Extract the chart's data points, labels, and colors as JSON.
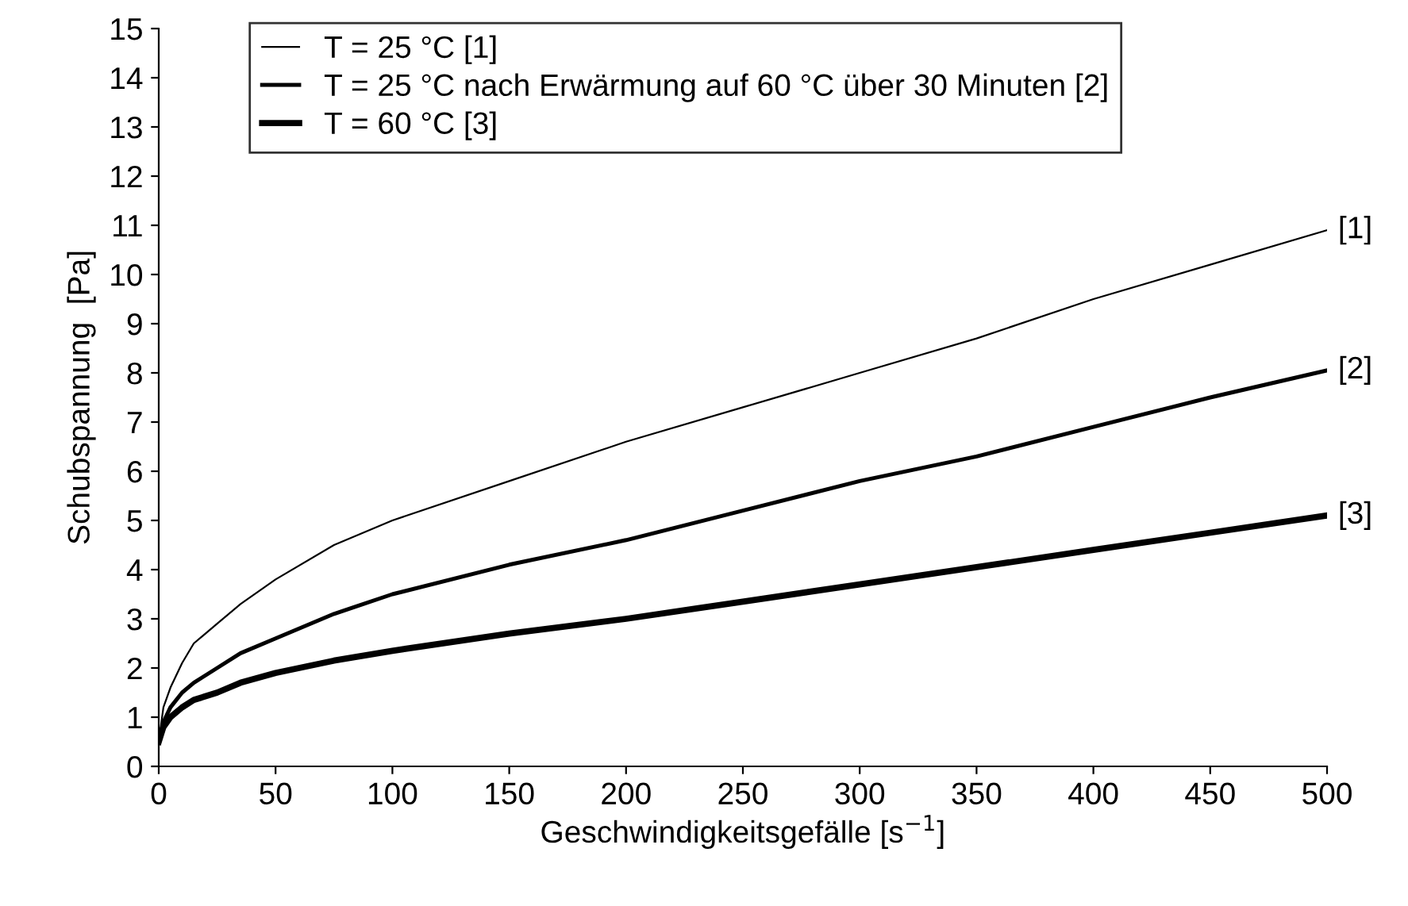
{
  "chart_data": {
    "type": "line",
    "xlabel": "Geschwindigkeitsgefälle [s$^{−1}$]",
    "ylabel": "Schubspannung  [Pa]",
    "xlim": [
      0,
      500
    ],
    "ylim": [
      0,
      15
    ],
    "xticks": [
      0,
      50,
      100,
      150,
      200,
      250,
      300,
      350,
      400,
      450,
      500
    ],
    "yticks": [
      0,
      1,
      2,
      3,
      4,
      5,
      6,
      7,
      8,
      9,
      10,
      11,
      12,
      13,
      14,
      15
    ],
    "grid": false,
    "legend": "top left",
    "marker": "none",
    "line_style": "solid",
    "series": [
      {
        "name": "T = 25 °C [1]",
        "color": "#000000",
        "x": [
          0,
          2,
          5,
          10,
          15,
          25,
          35,
          50,
          75,
          100,
          150,
          200,
          250,
          300,
          350,
          400,
          450,
          500
        ],
        "values": [
          0.5,
          1.2,
          1.6,
          2.1,
          2.5,
          2.9,
          3.3,
          3.8,
          4.5,
          5.0,
          5.8,
          6.6,
          7.3,
          8.0,
          8.7,
          9.5,
          10.2,
          10.9
        ]
      },
      {
        "name": "T = 25 °C nach Erwärmung auf 60 °C über 30 Minuten [2]",
        "color": "#000000",
        "x": [
          0,
          2,
          5,
          10,
          15,
          25,
          35,
          50,
          75,
          100,
          150,
          200,
          250,
          300,
          350,
          400,
          450,
          500
        ],
        "values": [
          0.5,
          0.9,
          1.2,
          1.5,
          1.7,
          2.0,
          2.3,
          2.6,
          3.1,
          3.5,
          4.1,
          4.6,
          5.2,
          5.8,
          6.3,
          6.9,
          7.5,
          8.05
        ]
      },
      {
        "name": "T = 60 °C [3]",
        "color": "#000000",
        "x": [
          0,
          2,
          5,
          10,
          15,
          25,
          35,
          50,
          75,
          100,
          150,
          200,
          250,
          300,
          350,
          400,
          450,
          500
        ],
        "values": [
          0.5,
          0.8,
          1.0,
          1.2,
          1.35,
          1.5,
          1.7,
          1.9,
          2.15,
          2.35,
          2.7,
          3.0,
          3.35,
          3.7,
          4.05,
          4.4,
          4.75,
          5.1
        ]
      }
    ],
    "annotations": [
      "[1]",
      "[2]",
      "[3]"
    ]
  }
}
